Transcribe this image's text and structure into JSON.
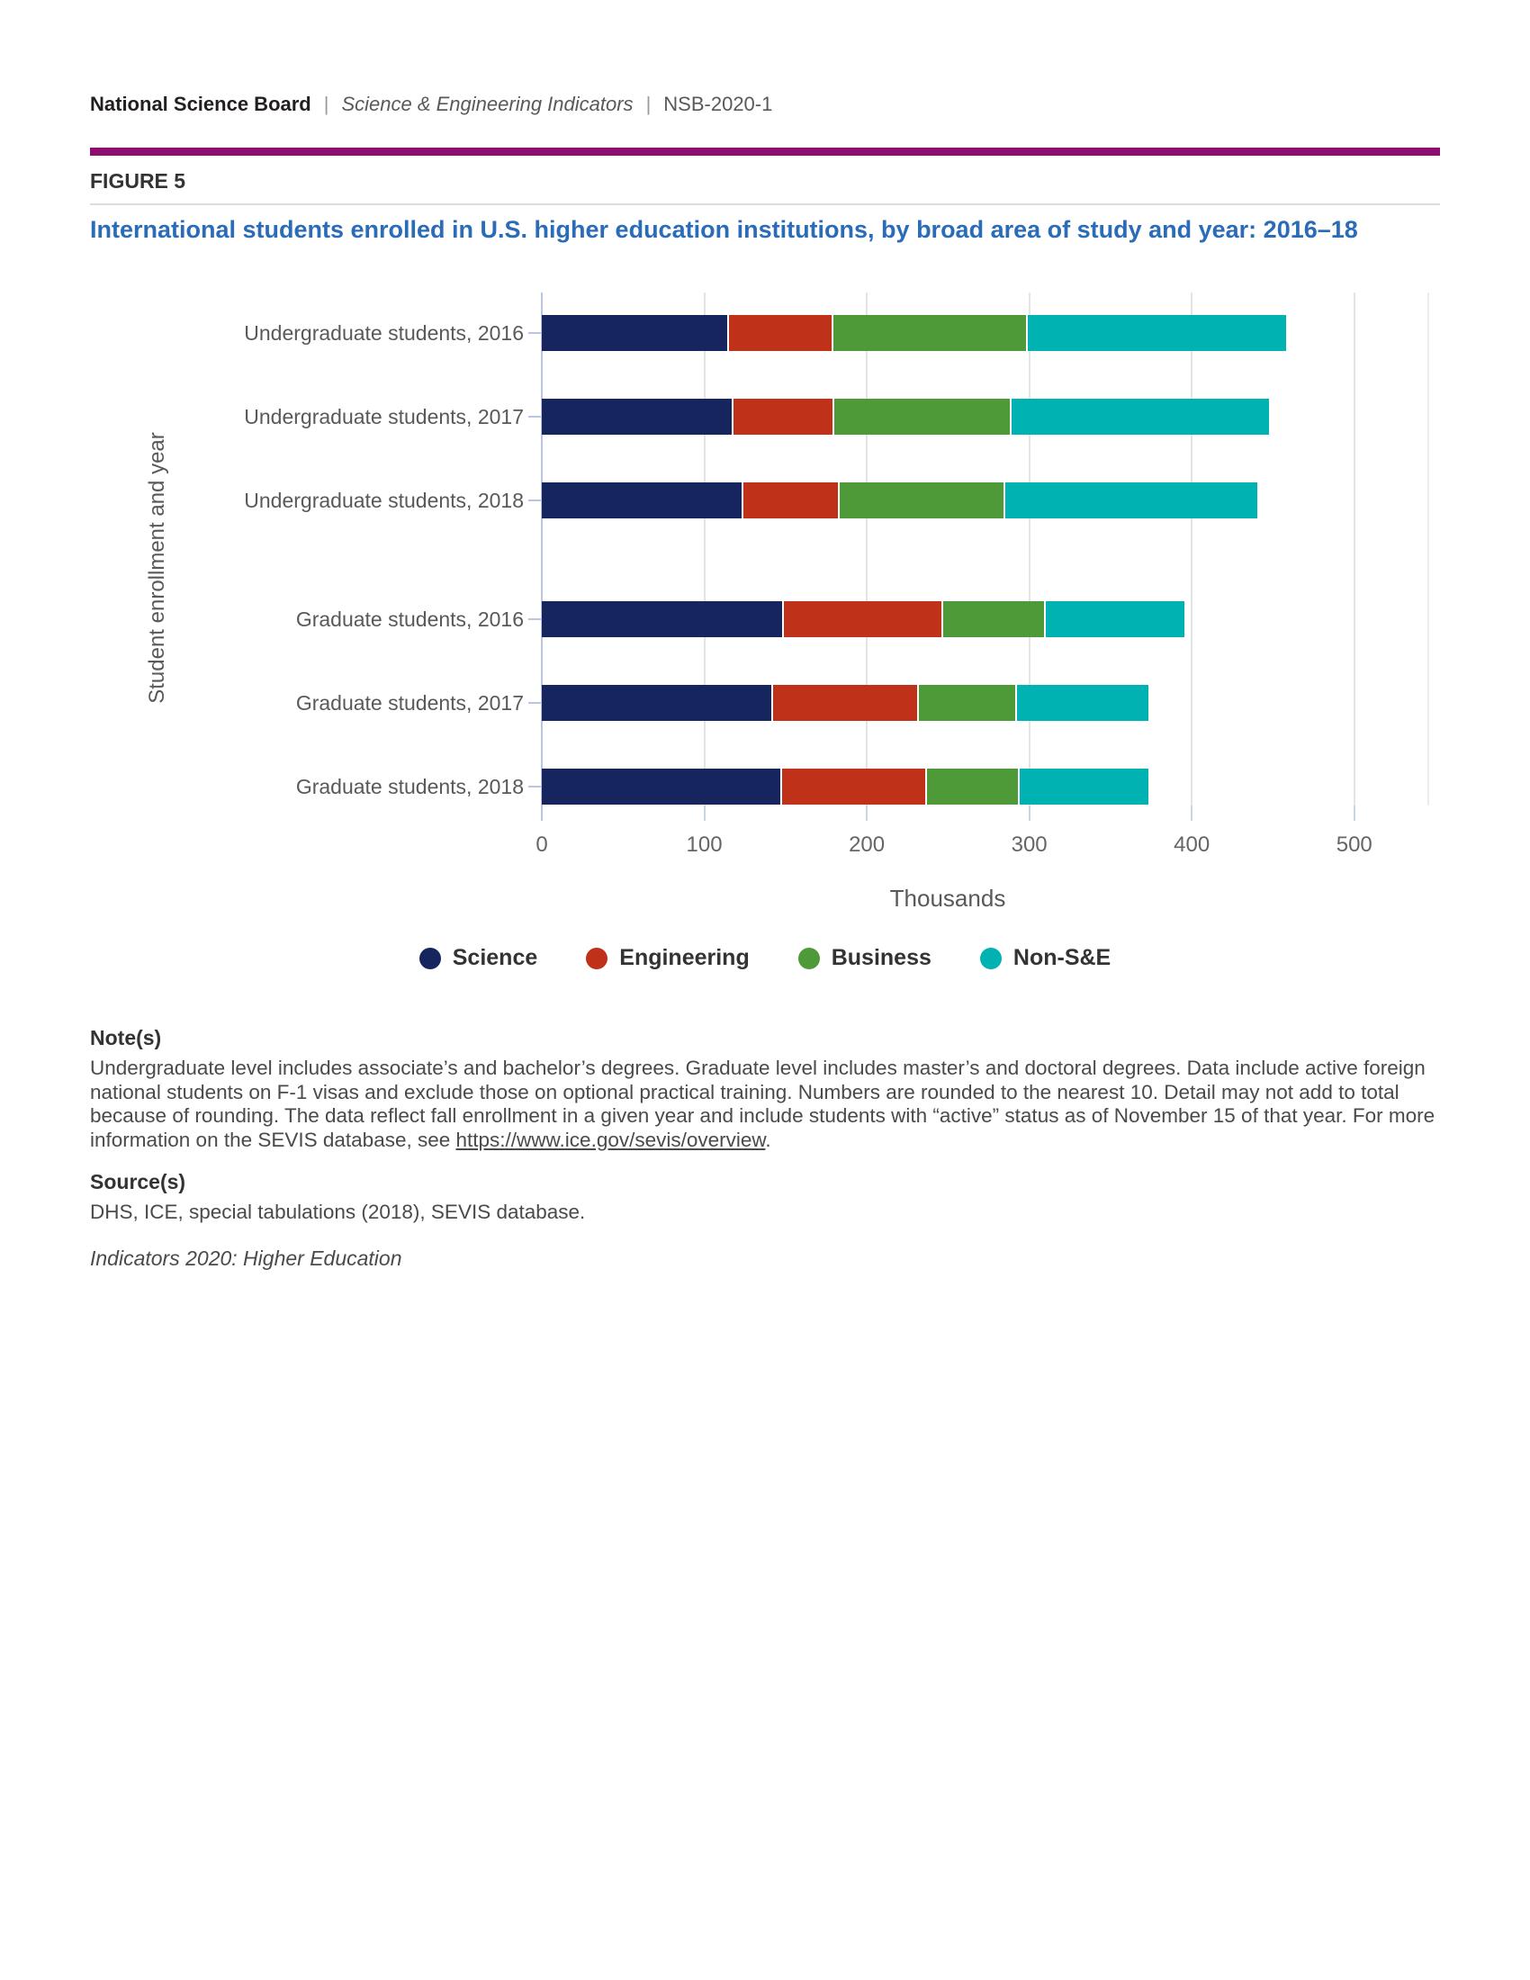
{
  "header": {
    "brand": "National Science Board",
    "sep": "|",
    "publication": "Science & Engineering Indicators",
    "code": "NSB-2020-1"
  },
  "figure_label": "FIGURE 5",
  "title": "International students enrolled in U.S. higher education institutions, by broad area of study and year: 2016–18",
  "chart_data": {
    "type": "bar",
    "orientation": "horizontal",
    "stacked": true,
    "unit": "thousands",
    "categories": [
      {
        "label": "Undergraduate students, 2016",
        "group": "Undergraduate"
      },
      {
        "label": "Undergraduate students, 2017",
        "group": "Undergraduate"
      },
      {
        "label": "Undergraduate students, 2018",
        "group": "Undergraduate"
      },
      {
        "label": "Graduate students, 2016",
        "group": "Graduate"
      },
      {
        "label": "Graduate students, 2017",
        "group": "Graduate"
      },
      {
        "label": "Graduate students, 2018",
        "group": "Graduate"
      }
    ],
    "series": [
      {
        "name": "Science",
        "color": "#17255e",
        "values": [
          114,
          117,
          123,
          148,
          141,
          147
        ]
      },
      {
        "name": "Engineering",
        "color": "#bf3119",
        "values": [
          63,
          61,
          58,
          97,
          89,
          88
        ]
      },
      {
        "name": "Business",
        "color": "#4e9a39",
        "values": [
          119,
          108,
          101,
          62,
          59,
          56
        ]
      },
      {
        "name": "Non-S&E",
        "color": "#00b2b2",
        "values": [
          159,
          158,
          155,
          85,
          81,
          79
        ]
      }
    ],
    "totals": [
      455,
      444,
      437,
      392,
      370,
      370
    ],
    "xlabel": "Thousands",
    "ylabel": "Student enrollment and year",
    "xlim": [
      0,
      545
    ],
    "xticks": [
      0,
      100,
      200,
      300,
      400,
      500
    ],
    "grid": true,
    "legend_position": "bottom"
  },
  "notes": {
    "heading": "Note(s)",
    "text_before_link": "Undergraduate level includes associate’s and bachelor’s degrees. Graduate level includes master’s and doctoral degrees. Data include active foreign national students on F-1 visas and exclude those on optional practical training. Numbers are rounded to the nearest 10. Detail may not add to total because of rounding. The data reflect fall enrollment in a given year and include students with “active” status as of November 15 of that year. For more information on the SEVIS database, see ",
    "link_text": "https://www.ice.gov/sevis/overview",
    "text_after_link": "."
  },
  "source": {
    "heading": "Source(s)",
    "text": "DHS, ICE, special tabulations (2018), SEVIS database."
  },
  "footer": {
    "italic_line": "Indicators 2020: Higher Education"
  },
  "style_colors": {
    "accent_rule": "#8e0e70",
    "title_blue": "#2a6cb8",
    "axis_line": "#b9c6e3",
    "gridline": "#e4e4e4"
  }
}
